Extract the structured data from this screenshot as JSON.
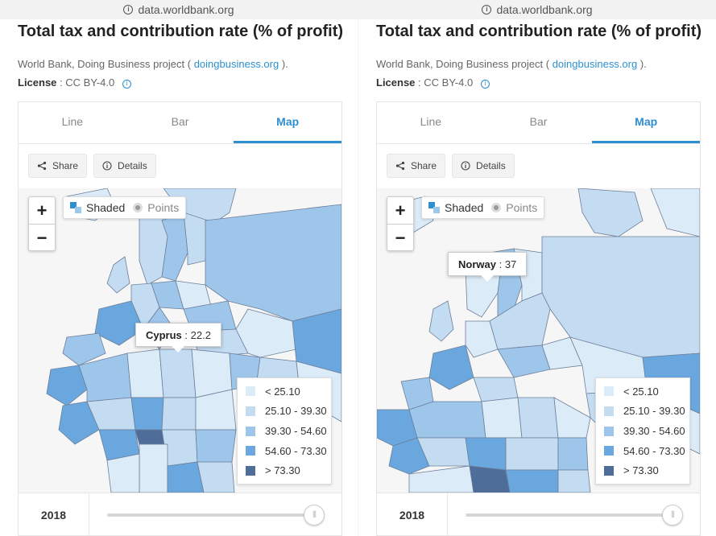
{
  "url": "data.worldbank.org",
  "title": "Total tax and contribution rate (% of profit)",
  "source_prefix": "World Bank, Doing Business project (",
  "source_link": "doingbusiness.org",
  "source_suffix": ").",
  "license_label": "License",
  "license_value": ": CC BY-4.0",
  "tabs": [
    "Line",
    "Bar",
    "Map"
  ],
  "active_tab": "Map",
  "share_label": "Share",
  "details_label": "Details",
  "zoom_in": "+",
  "zoom_out": "−",
  "mode_shaded": "Shaded",
  "mode_points": "Points",
  "legend": [
    {
      "label": "< 25.10",
      "color": "#dcebf8"
    },
    {
      "label": "25.10 - 39.30",
      "color": "#c3dcf2"
    },
    {
      "label": "39.30 - 54.60",
      "color": "#9dc6ea"
    },
    {
      "label": "54.60 - 73.30",
      "color": "#6aa7de"
    },
    {
      "label": "> 73.30",
      "color": "#4f6d99"
    }
  ],
  "year": "2018",
  "left": {
    "tooltip_country": "Cyprus",
    "tooltip_value": ": 22.2"
  },
  "right": {
    "tooltip_country": "Norway",
    "tooltip_value": ": 37"
  },
  "colors": {
    "accent": "#2e8fd0",
    "water": "#f6f6f6",
    "border": "#6d7f99"
  }
}
